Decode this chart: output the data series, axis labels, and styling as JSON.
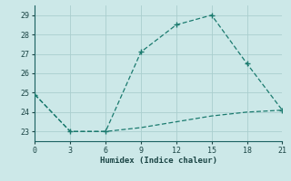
{
  "x": [
    0,
    3,
    6,
    9,
    12,
    15,
    18,
    21
  ],
  "y_upper": [
    24.9,
    23.0,
    23.0,
    27.1,
    28.5,
    29.0,
    26.5,
    24.1
  ],
  "y_lower": [
    24.9,
    23.0,
    23.0,
    23.2,
    23.5,
    23.8,
    24.0,
    24.1
  ],
  "line_color": "#1a7a6e",
  "bg_color": "#cce8e8",
  "grid_color": "#aacece",
  "xlabel": "Humidex (Indice chaleur)",
  "xlim": [
    0,
    21
  ],
  "ylim": [
    22.5,
    29.5
  ],
  "xticks": [
    0,
    3,
    6,
    9,
    12,
    15,
    18,
    21
  ],
  "yticks": [
    23,
    24,
    25,
    26,
    27,
    28,
    29
  ]
}
